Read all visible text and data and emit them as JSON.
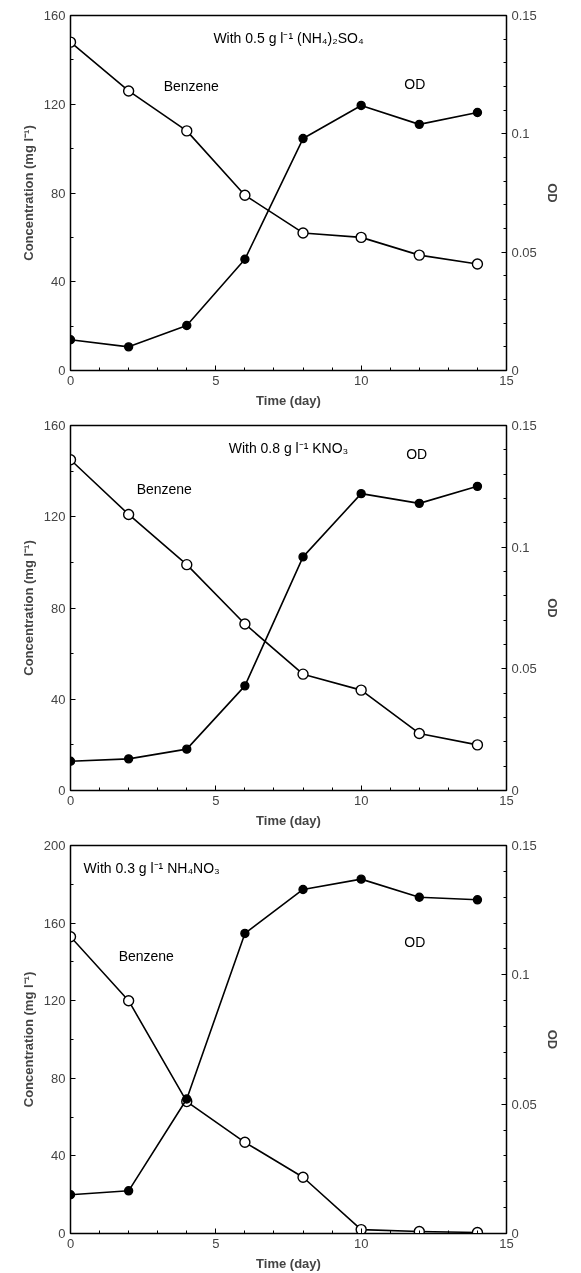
{
  "chart_data": [
    {
      "type": "line",
      "xlabel": "Time (day)",
      "ylabel": "Concentration (mg l⁻¹)",
      "y2label": "OD",
      "xlim": [
        0,
        15
      ],
      "xticks": [
        0,
        5,
        10,
        15
      ],
      "ylim": [
        0,
        160
      ],
      "yticks": [
        0,
        40,
        80,
        120,
        160
      ],
      "y2lim": [
        0,
        0.15
      ],
      "y2ticks": [
        0,
        0.05,
        0.1,
        0.15
      ],
      "grid": false,
      "marker": "circle",
      "line_style": "solid",
      "x": [
        0,
        2,
        4,
        6,
        8,
        10,
        12,
        14
      ],
      "series": [
        {
          "name": "Benzene",
          "color": "#000000",
          "values": [
            148,
            126,
            108,
            79,
            62,
            60,
            52,
            48
          ]
        },
        {
          "name": "OD",
          "color": "#000000",
          "axis": "y2",
          "values": [
            0.013,
            0.01,
            0.019,
            0.047,
            0.098,
            0.112,
            0.104,
            0.109
          ]
        }
      ],
      "annotations": [
        "With 0.5 g l⁻¹ (NH₄)₂SO₄"
      ]
    },
    {
      "type": "line",
      "xlabel": "Time (day)",
      "ylabel": "Concentration (mg l⁻¹)",
      "y2label": "OD",
      "xlim": [
        0,
        15
      ],
      "xticks": [
        0,
        5,
        10,
        15
      ],
      "ylim": [
        0,
        160
      ],
      "yticks": [
        0,
        40,
        80,
        120,
        160
      ],
      "y2lim": [
        0,
        0.15
      ],
      "y2ticks": [
        0,
        0.05,
        0.1,
        0.15
      ],
      "grid": false,
      "marker": "circle",
      "line_style": "solid",
      "x": [
        0,
        2,
        4,
        6,
        8,
        10,
        12,
        14
      ],
      "series": [
        {
          "name": "Benzene",
          "color": "#000000",
          "values": [
            145,
            121,
            99,
            73,
            51,
            44,
            25,
            20
          ]
        },
        {
          "name": "OD",
          "color": "#000000",
          "axis": "y2",
          "values": [
            0.012,
            0.013,
            0.017,
            0.043,
            0.096,
            0.122,
            0.118,
            0.125
          ]
        }
      ],
      "annotations": [
        "With 0.8 g l⁻¹ KNO₃"
      ]
    },
    {
      "type": "line",
      "xlabel": "Time (day)",
      "ylabel": "Concentration (mg l⁻¹)",
      "y2label": "OD",
      "xlim": [
        0,
        15
      ],
      "xticks": [
        0,
        5,
        10,
        15
      ],
      "ylim": [
        0,
        200
      ],
      "yticks": [
        0,
        40,
        80,
        120,
        160,
        200
      ],
      "y2lim": [
        0,
        0.15
      ],
      "y2ticks": [
        0,
        0.05,
        0.1,
        0.15
      ],
      "grid": false,
      "marker": "circle",
      "line_style": "solid",
      "x": [
        0,
        2,
        4,
        6,
        8,
        10,
        12,
        14
      ],
      "series": [
        {
          "name": "Benzene",
          "color": "#000000",
          "values": [
            153,
            120,
            68,
            47,
            29,
            2,
            1,
            0.5
          ]
        },
        {
          "name": "OD",
          "color": "#000000",
          "axis": "y2",
          "values": [
            0.015,
            0.0165,
            0.052,
            0.116,
            0.133,
            0.137,
            0.13,
            0.129
          ]
        }
      ],
      "annotations": [
        "With 0.3 g l⁻¹ NH₄NO₃"
      ]
    }
  ]
}
